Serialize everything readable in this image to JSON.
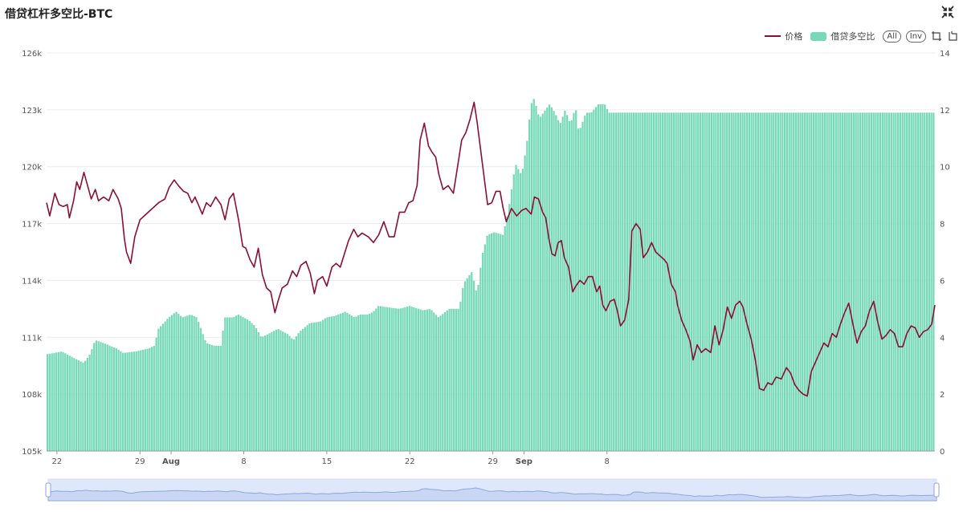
{
  "title": "借贷杠杆多空比-BTC",
  "legend": {
    "price_label": "价格",
    "ratio_label": "借贷多空比",
    "all_label": "All",
    "inv_label": "Inv"
  },
  "icons": {
    "fullscreen": "fullscreen-exit-icon",
    "rect": "rect-select-icon",
    "lasso": "lasso-select-icon"
  },
  "colors": {
    "price": "#8b0f35",
    "ratio": "#78d9b8",
    "zoom_fill": "#dfe8fb",
    "zoom_line": "#8fa6e0"
  },
  "chart_data": {
    "type": "bar+line",
    "x_tick_labels": [
      "22",
      "29",
      "Aug",
      "8",
      "15",
      "22",
      "29",
      "Sep",
      "8"
    ],
    "y_left": {
      "ticks": [
        "105k",
        "108k",
        "111k",
        "114k",
        "117k",
        "120k",
        "123k",
        "126k"
      ],
      "min": 105000,
      "max": 126000
    },
    "y_right": {
      "ticks": [
        "0",
        "2",
        "4",
        "6",
        "8",
        "10",
        "12",
        "14"
      ],
      "min": 0,
      "max": 14
    },
    "grid": true,
    "legend_position": "top-right",
    "ratio_series": {
      "name": "借贷多空比",
      "type": "bar",
      "points": [
        [
          0,
          3.4
        ],
        [
          1.5,
          3.5
        ],
        [
          2.5,
          3.3
        ],
        [
          3.6,
          3.1
        ],
        [
          4.2,
          3.4
        ],
        [
          4.7,
          3.9
        ],
        [
          5.5,
          3.8
        ],
        [
          6.8,
          3.6
        ],
        [
          7.4,
          3.45
        ],
        [
          8.6,
          3.5
        ],
        [
          9.8,
          3.6
        ],
        [
          10.4,
          3.7
        ],
        [
          10.8,
          4.3
        ],
        [
          11.8,
          4.7
        ],
        [
          12.5,
          4.9
        ],
        [
          13.1,
          4.7
        ],
        [
          13.9,
          4.8
        ],
        [
          14.5,
          4.7
        ],
        [
          15.4,
          3.8
        ],
        [
          16.2,
          3.7
        ],
        [
          16.8,
          3.7
        ],
        [
          17.2,
          4.7
        ],
        [
          18.0,
          4.7
        ],
        [
          18.5,
          4.8
        ],
        [
          19.5,
          4.6
        ],
        [
          20.1,
          4.4
        ],
        [
          20.7,
          4.0
        ],
        [
          21.3,
          4.1
        ],
        [
          22.3,
          4.3
        ],
        [
          23.3,
          4.1
        ],
        [
          23.8,
          3.9
        ],
        [
          24.4,
          4.2
        ],
        [
          25.4,
          4.5
        ],
        [
          26.4,
          4.55
        ],
        [
          27.0,
          4.7
        ],
        [
          27.8,
          4.75
        ],
        [
          28.8,
          4.9
        ],
        [
          29.7,
          4.7
        ],
        [
          30.2,
          4.8
        ],
        [
          31.0,
          4.8
        ],
        [
          31.5,
          4.9
        ],
        [
          32.0,
          5.1
        ],
        [
          33.0,
          5.05
        ],
        [
          34.0,
          5.0
        ],
        [
          35.0,
          5.1
        ],
        [
          36.3,
          4.95
        ],
        [
          37.0,
          5.0
        ],
        [
          37.8,
          4.7
        ],
        [
          38.8,
          5.0
        ],
        [
          39.8,
          5.0
        ],
        [
          40.2,
          5.9
        ],
        [
          41.0,
          6.3
        ],
        [
          41.5,
          5.5
        ],
        [
          42.0,
          6.9
        ],
        [
          42.5,
          7.6
        ],
        [
          43.2,
          7.7
        ],
        [
          44.0,
          7.6
        ],
        [
          44.5,
          8.4
        ],
        [
          45.2,
          10.1
        ],
        [
          45.8,
          9.7
        ],
        [
          46.3,
          10.8
        ],
        [
          46.7,
          12.2
        ],
        [
          47.0,
          12.4
        ],
        [
          47.5,
          11.7
        ],
        [
          48.5,
          12.2
        ],
        [
          49.0,
          11.9
        ],
        [
          49.5,
          11.5
        ],
        [
          50.0,
          12.0
        ],
        [
          50.5,
          11.5
        ],
        [
          51.0,
          12.1
        ],
        [
          51.3,
          11.2
        ],
        [
          52.0,
          11.9
        ],
        [
          52.5,
          11.9
        ],
        [
          53.2,
          12.2
        ],
        [
          53.8,
          12.2
        ],
        [
          54.2,
          11.9
        ]
      ]
    },
    "price_series": {
      "name": "价格",
      "type": "line",
      "points": [
        [
          0,
          118100
        ],
        [
          0.3,
          117400
        ],
        [
          0.8,
          118600
        ],
        [
          1.2,
          118000
        ],
        [
          1.6,
          117900
        ],
        [
          2.0,
          118000
        ],
        [
          2.2,
          117300
        ],
        [
          2.6,
          118200
        ],
        [
          2.9,
          119200
        ],
        [
          3.2,
          118800
        ],
        [
          3.6,
          119700
        ],
        [
          4.0,
          118900
        ],
        [
          4.3,
          118300
        ],
        [
          4.7,
          118800
        ],
        [
          5.0,
          118200
        ],
        [
          5.5,
          118400
        ],
        [
          6.0,
          118200
        ],
        [
          6.4,
          118800
        ],
        [
          6.9,
          118300
        ],
        [
          7.2,
          117800
        ],
        [
          7.5,
          116200
        ],
        [
          7.7,
          115500
        ],
        [
          8.1,
          114900
        ],
        [
          8.5,
          116300
        ],
        [
          9.0,
          117200
        ],
        [
          9.4,
          117400
        ],
        [
          10.0,
          117700
        ],
        [
          10.8,
          118100
        ],
        [
          11.4,
          118300
        ],
        [
          11.8,
          118900
        ],
        [
          12.3,
          119300
        ],
        [
          12.7,
          119000
        ],
        [
          13.2,
          118700
        ],
        [
          13.6,
          118600
        ],
        [
          14.0,
          118100
        ],
        [
          14.3,
          118400
        ],
        [
          14.7,
          117900
        ],
        [
          15.0,
          117500
        ],
        [
          15.4,
          118100
        ],
        [
          15.8,
          117900
        ],
        [
          16.3,
          118400
        ],
        [
          16.8,
          118000
        ],
        [
          17.2,
          117200
        ],
        [
          17.6,
          118300
        ],
        [
          18.0,
          118600
        ],
        [
          18.5,
          117200
        ],
        [
          18.9,
          115800
        ],
        [
          19.2,
          115700
        ],
        [
          19.6,
          115100
        ],
        [
          20.0,
          114700
        ],
        [
          20.4,
          115700
        ],
        [
          20.8,
          114300
        ],
        [
          21.2,
          113600
        ],
        [
          21.6,
          113400
        ],
        [
          22.0,
          112300
        ],
        [
          22.3,
          112900
        ],
        [
          22.7,
          113600
        ],
        [
          23.2,
          113800
        ],
        [
          23.7,
          114500
        ],
        [
          24.1,
          114200
        ],
        [
          24.5,
          114800
        ],
        [
          25.0,
          115000
        ],
        [
          25.4,
          114400
        ],
        [
          25.8,
          113300
        ],
        [
          26.1,
          114000
        ],
        [
          26.6,
          114200
        ],
        [
          27.0,
          113700
        ],
        [
          27.5,
          114700
        ],
        [
          27.9,
          114900
        ],
        [
          28.3,
          114700
        ],
        [
          28.7,
          115400
        ],
        [
          29.1,
          116100
        ],
        [
          29.6,
          116700
        ],
        [
          30.0,
          116300
        ],
        [
          30.4,
          116500
        ],
        [
          31.0,
          116300
        ],
        [
          31.5,
          116000
        ],
        [
          32.0,
          116400
        ],
        [
          32.5,
          117100
        ],
        [
          33.0,
          116300
        ],
        [
          33.5,
          116300
        ],
        [
          34.0,
          117600
        ],
        [
          34.5,
          117600
        ],
        [
          34.9,
          118100
        ],
        [
          35.3,
          118200
        ],
        [
          35.7,
          119000
        ],
        [
          36.0,
          121400
        ],
        [
          36.4,
          122300
        ],
        [
          36.8,
          121100
        ],
        [
          37.1,
          120800
        ],
        [
          37.5,
          120500
        ],
        [
          37.8,
          119600
        ],
        [
          38.2,
          118800
        ],
        [
          38.7,
          119000
        ],
        [
          39.2,
          118600
        ],
        [
          39.6,
          120000
        ],
        [
          40.0,
          121400
        ],
        [
          40.4,
          121800
        ],
        [
          40.8,
          122500
        ],
        [
          41.2,
          123400
        ],
        [
          41.5,
          122300
        ],
        [
          41.8,
          121000
        ],
        [
          42.2,
          119300
        ],
        [
          42.5,
          118000
        ],
        [
          42.9,
          118100
        ],
        [
          43.3,
          118700
        ],
        [
          43.7,
          118700
        ],
        [
          44.0,
          117800
        ],
        [
          44.3,
          117100
        ],
        [
          44.8,
          117800
        ],
        [
          45.3,
          117400
        ],
        [
          45.8,
          117700
        ],
        [
          46.2,
          117800
        ],
        [
          46.7,
          117500
        ],
        [
          47.0,
          118400
        ],
        [
          47.4,
          118300
        ],
        [
          47.8,
          117600
        ],
        [
          48.1,
          117300
        ],
        [
          48.4,
          116200
        ],
        [
          48.7,
          115400
        ],
        [
          49.0,
          115300
        ],
        [
          49.3,
          116000
        ],
        [
          49.6,
          116100
        ],
        [
          49.9,
          115200
        ],
        [
          50.3,
          114700
        ],
        [
          50.7,
          113400
        ],
        [
          51.0,
          113700
        ],
        [
          51.4,
          114000
        ],
        [
          51.8,
          113800
        ],
        [
          52.2,
          114200
        ],
        [
          52.6,
          114200
        ],
        [
          53.0,
          113400
        ],
        [
          53.3,
          113700
        ],
        [
          53.6,
          112700
        ],
        [
          53.9,
          112400
        ],
        [
          54.3,
          112900
        ],
        [
          54.7,
          113000
        ],
        [
          55.0,
          112400
        ],
        [
          55.3,
          111600
        ],
        [
          55.7,
          111900
        ],
        [
          56.1,
          113000
        ],
        [
          56.4,
          116600
        ],
        [
          56.8,
          117000
        ],
        [
          57.2,
          116700
        ],
        [
          57.5,
          115200
        ],
        [
          57.9,
          115500
        ],
        [
          58.3,
          116000
        ],
        [
          58.7,
          115500
        ],
        [
          59.1,
          115300
        ],
        [
          59.5,
          115100
        ],
        [
          59.8,
          114900
        ],
        [
          60.2,
          113800
        ],
        [
          60.6,
          113400
        ],
        [
          60.8,
          112700
        ],
        [
          61.2,
          111900
        ],
        [
          61.6,
          111400
        ],
        [
          62.0,
          110800
        ],
        [
          62.3,
          109800
        ],
        [
          62.7,
          110600
        ],
        [
          63.1,
          110200
        ],
        [
          63.5,
          110400
        ],
        [
          64.0,
          110200
        ],
        [
          64.4,
          111600
        ],
        [
          64.8,
          110600
        ],
        [
          65.2,
          111400
        ],
        [
          65.6,
          112600
        ],
        [
          66.0,
          112000
        ],
        [
          66.4,
          112700
        ],
        [
          66.8,
          112900
        ],
        [
          67.1,
          112600
        ],
        [
          67.5,
          111700
        ],
        [
          67.9,
          110900
        ],
        [
          68.3,
          109800
        ],
        [
          68.7,
          108300
        ],
        [
          69.1,
          108200
        ],
        [
          69.5,
          108600
        ],
        [
          69.9,
          108500
        ],
        [
          70.3,
          108900
        ],
        [
          70.8,
          108800
        ],
        [
          71.3,
          109400
        ],
        [
          71.7,
          109100
        ],
        [
          72.1,
          108500
        ],
        [
          72.5,
          108200
        ],
        [
          72.9,
          108000
        ],
        [
          73.3,
          107900
        ],
        [
          73.7,
          109200
        ],
        [
          74.1,
          109700
        ],
        [
          74.5,
          110200
        ],
        [
          74.9,
          110700
        ],
        [
          75.3,
          110500
        ],
        [
          75.7,
          111200
        ],
        [
          76.1,
          111000
        ],
        [
          76.5,
          111700
        ],
        [
          76.9,
          112300
        ],
        [
          77.3,
          112800
        ],
        [
          77.7,
          111700
        ],
        [
          78.1,
          110700
        ],
        [
          78.5,
          111300
        ],
        [
          78.9,
          111600
        ],
        [
          79.3,
          112400
        ],
        [
          79.7,
          112900
        ],
        [
          80.1,
          111800
        ],
        [
          80.5,
          110900
        ],
        [
          80.9,
          111100
        ],
        [
          81.3,
          111400
        ],
        [
          81.7,
          111200
        ],
        [
          82.1,
          110500
        ],
        [
          82.5,
          110500
        ],
        [
          82.9,
          111200
        ],
        [
          83.3,
          111600
        ],
        [
          83.7,
          111500
        ],
        [
          84.1,
          111000
        ],
        [
          84.5,
          111300
        ],
        [
          84.9,
          111400
        ],
        [
          85.3,
          111700
        ],
        [
          85.6,
          112700
        ]
      ]
    },
    "x_domain": [
      0,
      85.6
    ],
    "x_ticks_at": [
      1.0,
      9.0,
      12.0,
      19.0,
      27.0,
      35.0,
      43.0,
      46.0,
      54.0
    ]
  }
}
